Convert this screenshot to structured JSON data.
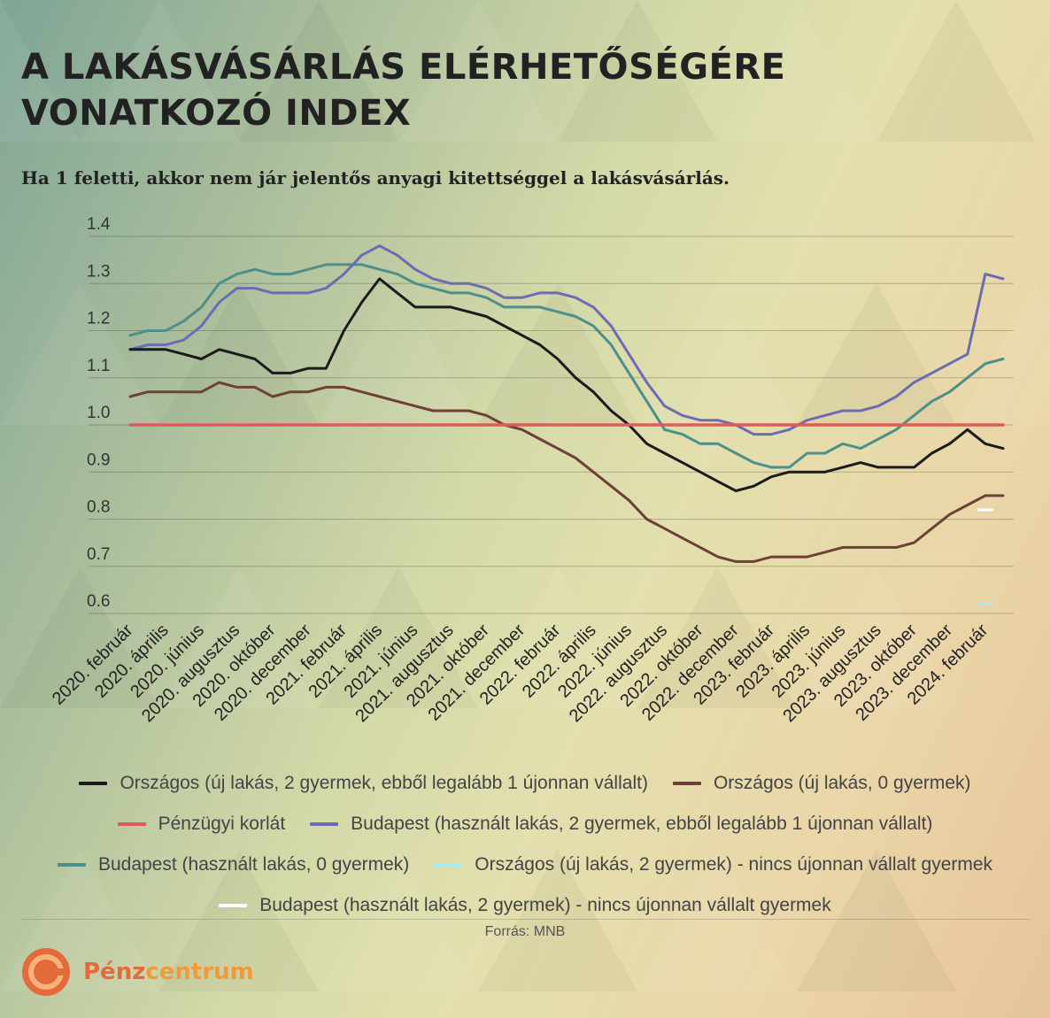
{
  "title": {
    "line1": "A LAKÁSVÁSÁRLÁS ELÉRHETŐSÉGÉRE",
    "line2": "VONATKOZÓ INDEX"
  },
  "subtitle": "Ha 1 feletti, akkor nem jár jelentős anyagi kitettséggel a lakásvásárlás.",
  "source": "Forrás: MNB",
  "logo": {
    "part1": "Pénz",
    "part2": "centrum",
    "icon": "pc-logo-icon"
  },
  "colors": {
    "orszagos_uj_2": "#1b1b1b",
    "orszagos_uj_0": "#6e4138",
    "korlat": "#df5a5a",
    "bp_hasznalt_2": "#6d6bb4",
    "bp_hasznalt_0": "#4d8f8a",
    "orszagos_uj_2_nincs": "#a9ecee",
    "bp_hasznalt_2_nincs": "#ffffff",
    "accent": "#e36a3b"
  },
  "chart_data": {
    "type": "line",
    "ylim": [
      0.6,
      1.4
    ],
    "yticks": [
      "0.6",
      "0.7",
      "0.8",
      "0.9",
      "1.0",
      "1.1",
      "1.2",
      "1.3",
      "1.4"
    ],
    "grid": true,
    "legend_position": "bottom",
    "x": [
      "2020. február",
      "2020. március",
      "2020. április",
      "2020. május",
      "2020. június",
      "2020. július",
      "2020. augusztus",
      "2020. szeptember",
      "2020. október",
      "2020. november",
      "2020. december",
      "2021. január",
      "2021. február",
      "2021. március",
      "2021. április",
      "2021. május",
      "2021. június",
      "2021. július",
      "2021. augusztus",
      "2021. szeptember",
      "2021. október",
      "2021. november",
      "2021. december",
      "2022. január",
      "2022. február",
      "2022. március",
      "2022. április",
      "2022. május",
      "2022. június",
      "2022. július",
      "2022. augusztus",
      "2022. szeptember",
      "2022. október",
      "2022. november",
      "2022. december",
      "2023. január",
      "2023. február",
      "2023. március",
      "2023. április",
      "2023. május",
      "2023. június",
      "2023. július",
      "2023. augusztus",
      "2023. szeptember",
      "2023. október",
      "2023. november",
      "2023. december",
      "2024. január",
      "2024. február",
      "2024. március"
    ],
    "xtick_labels": [
      "2020. február",
      "2020. április",
      "2020. június",
      "2020. augusztus",
      "2020. október",
      "2020. december",
      "2021. február",
      "2021. április",
      "2021. június",
      "2021. augusztus",
      "2021. október",
      "2021. december",
      "2022. február",
      "2022. április",
      "2022. június",
      "2022. augusztus",
      "2022. október",
      "2022. december",
      "2023. február",
      "2023. április",
      "2023. június",
      "2023. augusztus",
      "2023. október",
      "2023. december",
      "2024. február"
    ],
    "series": [
      {
        "name": "Országos (új lakás, 2 gyermek, ebből legalább 1 újonnan vállalt)",
        "color": "#1b1b1b",
        "values": [
          1.16,
          1.16,
          1.16,
          1.15,
          1.14,
          1.16,
          1.15,
          1.14,
          1.11,
          1.11,
          1.12,
          1.12,
          1.2,
          1.26,
          1.31,
          1.28,
          1.25,
          1.25,
          1.25,
          1.24,
          1.23,
          1.21,
          1.19,
          1.17,
          1.14,
          1.1,
          1.07,
          1.03,
          1.0,
          0.96,
          0.94,
          0.92,
          0.9,
          0.88,
          0.86,
          0.87,
          0.89,
          0.9,
          0.9,
          0.9,
          0.91,
          0.92,
          0.91,
          0.91,
          0.91,
          0.94,
          0.96,
          0.99,
          0.96,
          0.95
        ]
      },
      {
        "name": "Országos (új lakás, 0 gyermek)",
        "color": "#6e4138",
        "values": [
          1.06,
          1.07,
          1.07,
          1.07,
          1.07,
          1.09,
          1.08,
          1.08,
          1.06,
          1.07,
          1.07,
          1.08,
          1.08,
          1.07,
          1.06,
          1.05,
          1.04,
          1.03,
          1.03,
          1.03,
          1.02,
          1.0,
          0.99,
          0.97,
          0.95,
          0.93,
          0.9,
          0.87,
          0.84,
          0.8,
          0.78,
          0.76,
          0.74,
          0.72,
          0.71,
          0.71,
          0.72,
          0.72,
          0.72,
          0.73,
          0.74,
          0.74,
          0.74,
          0.74,
          0.75,
          0.78,
          0.81,
          0.83,
          0.85,
          0.85
        ]
      },
      {
        "name": "Pénzügyi korlát",
        "color": "#df5a5a",
        "values": [
          1.0,
          1.0,
          1.0,
          1.0,
          1.0,
          1.0,
          1.0,
          1.0,
          1.0,
          1.0,
          1.0,
          1.0,
          1.0,
          1.0,
          1.0,
          1.0,
          1.0,
          1.0,
          1.0,
          1.0,
          1.0,
          1.0,
          1.0,
          1.0,
          1.0,
          1.0,
          1.0,
          1.0,
          1.0,
          1.0,
          1.0,
          1.0,
          1.0,
          1.0,
          1.0,
          1.0,
          1.0,
          1.0,
          1.0,
          1.0,
          1.0,
          1.0,
          1.0,
          1.0,
          1.0,
          1.0,
          1.0,
          1.0,
          1.0,
          1.0
        ]
      },
      {
        "name": "Budapest (használt lakás, 2 gyermek, ebből legalább 1 újonnan vállalt)",
        "color": "#6d6bb4",
        "values": [
          1.16,
          1.17,
          1.17,
          1.18,
          1.21,
          1.26,
          1.29,
          1.29,
          1.28,
          1.28,
          1.28,
          1.29,
          1.32,
          1.36,
          1.38,
          1.36,
          1.33,
          1.31,
          1.3,
          1.3,
          1.29,
          1.27,
          1.27,
          1.28,
          1.28,
          1.27,
          1.25,
          1.21,
          1.15,
          1.09,
          1.04,
          1.02,
          1.01,
          1.01,
          1.0,
          0.98,
          0.98,
          0.99,
          1.01,
          1.02,
          1.03,
          1.03,
          1.04,
          1.06,
          1.09,
          1.11,
          1.13,
          1.15,
          1.32,
          1.31
        ]
      },
      {
        "name": "Budapest (használt lakás, 0 gyermek)",
        "color": "#4d8f8a",
        "values": [
          1.19,
          1.2,
          1.2,
          1.22,
          1.25,
          1.3,
          1.32,
          1.33,
          1.32,
          1.32,
          1.33,
          1.34,
          1.34,
          1.34,
          1.33,
          1.32,
          1.3,
          1.29,
          1.28,
          1.28,
          1.27,
          1.25,
          1.25,
          1.25,
          1.24,
          1.23,
          1.21,
          1.17,
          1.11,
          1.05,
          0.99,
          0.98,
          0.96,
          0.96,
          0.94,
          0.92,
          0.91,
          0.91,
          0.94,
          0.94,
          0.96,
          0.95,
          0.97,
          0.99,
          1.02,
          1.05,
          1.07,
          1.1,
          1.13,
          1.14
        ]
      },
      {
        "name": "Országos (új lakás, 2 gyermek) - nincs újonnan vállalt gyermek",
        "color": "#a9ecee",
        "x_last": "2024. február",
        "value": 0.62
      },
      {
        "name": "Budapest (használt lakás, 2 gyermek) - nincs újonnan vállalt gyermek",
        "color": "#ffffff",
        "x_last": "2024. február",
        "value": 0.82
      }
    ]
  },
  "legend": {
    "rows": [
      [
        {
          "label": "Országos (új lakás, 2 gyermek, ebből legalább 1 újonnan vállalt)",
          "color": "#1b1b1b"
        },
        {
          "label": "Országos (új lakás, 0 gyermek)",
          "color": "#6e4138"
        }
      ],
      [
        {
          "label": "Pénzügyi korlát",
          "color": "#df5a5a"
        },
        {
          "label": "Budapest (használt lakás, 2 gyermek, ebből legalább 1 újonnan vállalt)",
          "color": "#6d6bb4"
        }
      ],
      [
        {
          "label": "Budapest (használt lakás, 0 gyermek)",
          "color": "#4d8f8a"
        },
        {
          "label": "Országos (új lakás, 2 gyermek) - nincs újonnan vállalt gyermek",
          "color": "#a9ecee"
        }
      ],
      [
        {
          "label": "Budapest (használt lakás, 2 gyermek) - nincs újonnan vállalt gyermek",
          "color": "#ffffff"
        }
      ]
    ]
  }
}
